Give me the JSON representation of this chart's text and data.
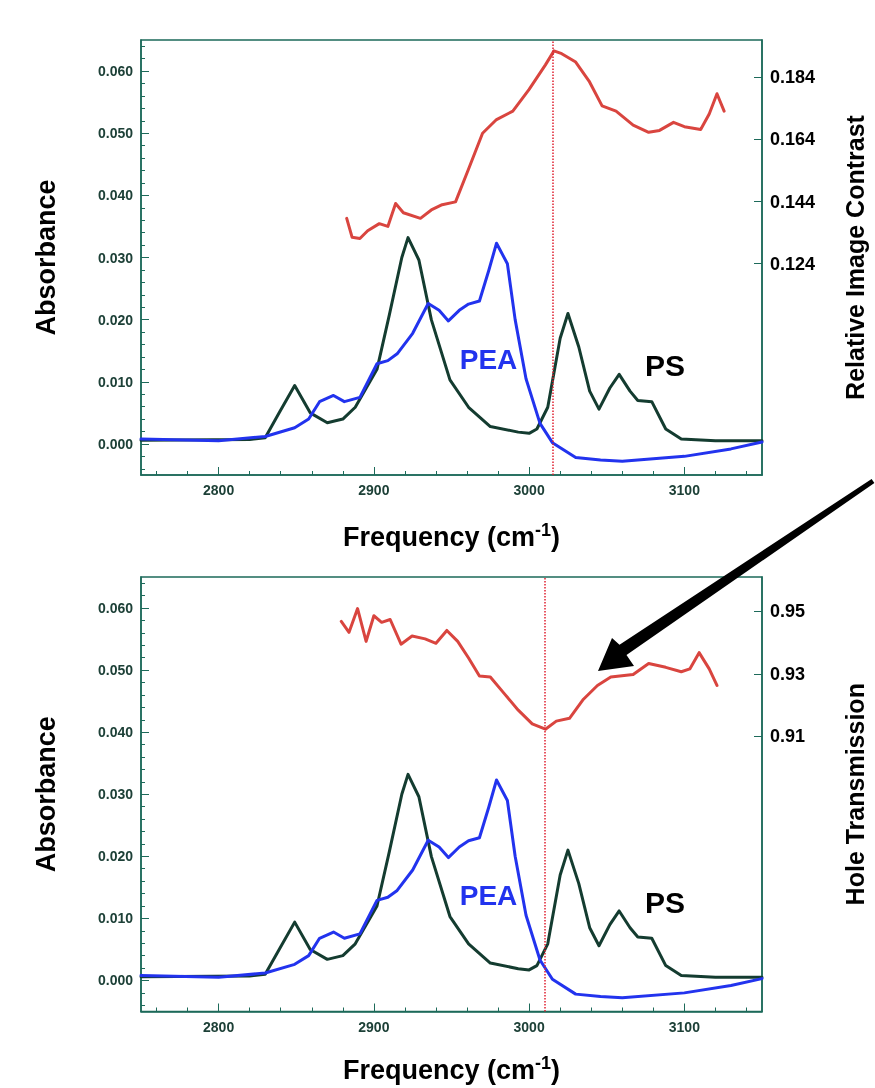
{
  "chart_data": [
    {
      "type": "line",
      "xlabel": "Frequency (cm$^{-1}$)",
      "ylabel": "Absorbance",
      "y2label": "Relative Image Contrast",
      "xlim": [
        2750,
        3150
      ],
      "xticks": [
        2800,
        2900,
        3000,
        3100
      ],
      "ylim": [
        -0.005,
        0.065
      ],
      "yticks": [
        {
          "value": 0,
          "label": "0.000"
        },
        {
          "value": 0.01,
          "label": "0.010"
        },
        {
          "value": 0.02,
          "label": "0.020"
        },
        {
          "value": 0.03,
          "label": "0.030"
        },
        {
          "value": 0.04,
          "label": "0.040"
        },
        {
          "value": 0.05,
          "label": "0.050"
        },
        {
          "value": 0.06,
          "label": "0.060"
        }
      ],
      "y2lim": [
        0.056,
        0.196
      ],
      "y2ticks": [
        0.124,
        0.144,
        0.164,
        0.184
      ],
      "legend": false,
      "grid": false,
      "marker": "none",
      "line_style": "solid",
      "ref_lines": [
        {
          "axis": "x",
          "value": 3015,
          "color": "#e02030",
          "line_style": "dotted"
        }
      ],
      "series": [
        {
          "name": "PS",
          "color": "#143c30",
          "x": [
            2750,
            2820,
            2830,
            2839,
            2849,
            2859,
            2870,
            2880,
            2888,
            2902,
            2910,
            2918,
            2922,
            2929,
            2937,
            2949,
            2961,
            2975,
            2993,
            3000,
            3005,
            3012,
            3020,
            3025,
            3032,
            3039,
            3045,
            3052,
            3058,
            3065,
            3070,
            3079,
            3088,
            3098,
            3120,
            3150
          ],
          "values": [
            0.0006,
            0.0007,
            0.001,
            0.005,
            0.0094,
            0.005,
            0.0034,
            0.004,
            0.0059,
            0.012,
            0.0208,
            0.03,
            0.0332,
            0.0296,
            0.02,
            0.0103,
            0.0059,
            0.0028,
            0.0019,
            0.0017,
            0.0024,
            0.0059,
            0.017,
            0.021,
            0.0156,
            0.0085,
            0.0056,
            0.009,
            0.0112,
            0.0085,
            0.007,
            0.0068,
            0.0024,
            0.0008,
            0.0005,
            0.0005
          ]
        },
        {
          "name": "PEA",
          "color": "#2233ee",
          "x": [
            2750,
            2800,
            2830,
            2849,
            2858,
            2865,
            2874,
            2881,
            2891,
            2902,
            2909,
            2915,
            2925,
            2935,
            2942,
            2948,
            2955,
            2961,
            2968,
            2974,
            2979,
            2986,
            2991,
            2998,
            3007,
            3015,
            3030,
            3046,
            3060,
            3100,
            3130,
            3150
          ],
          "values": [
            0.0008,
            0.0005,
            0.0012,
            0.0026,
            0.004,
            0.0068,
            0.0078,
            0.0068,
            0.0075,
            0.0129,
            0.0134,
            0.0145,
            0.0178,
            0.0226,
            0.0215,
            0.0198,
            0.0215,
            0.0225,
            0.023,
            0.0279,
            0.0323,
            0.029,
            0.02,
            0.0105,
            0.0033,
            0.0002,
            -0.0022,
            -0.0026,
            -0.0028,
            -0.002,
            -0.0008,
            0.0003
          ]
        },
        {
          "axis": "y2",
          "color": "#d9453f",
          "x": [
            2882.5,
            2886,
            2891,
            2896,
            2903.5,
            2909,
            2914,
            2919,
            2930,
            2937,
            2944,
            2952.6,
            2961,
            2970,
            2979,
            2989.5,
            3000,
            3010.5,
            3016,
            3021,
            3030,
            3038.6,
            3047,
            3056,
            3067,
            3077,
            3084,
            3093,
            3100,
            3110.5,
            3116,
            3121,
            3125.6
          ],
          "values": [
            0.1386,
            0.1325,
            0.1321,
            0.1346,
            0.1369,
            0.136,
            0.1434,
            0.1404,
            0.1386,
            0.1413,
            0.143,
            0.1439,
            0.1545,
            0.166,
            0.1704,
            0.1731,
            0.1801,
            0.188,
            0.1925,
            0.1916,
            0.1889,
            0.1828,
            0.1748,
            0.1731,
            0.1686,
            0.1663,
            0.1669,
            0.1695,
            0.1681,
            0.1672,
            0.1722,
            0.1787,
            0.1731
          ]
        }
      ]
    },
    {
      "type": "line",
      "xlabel": "Frequency (cm$^{-1}$)",
      "ylabel": "Absorbance",
      "y2label": "Hole Transmission",
      "xlim": [
        2750,
        3150
      ],
      "xticks": [
        2800,
        2900,
        3000,
        3100
      ],
      "ylim": [
        -0.005,
        0.065
      ],
      "yticks": [
        {
          "value": 0,
          "label": "0.000"
        },
        {
          "value": 0.01,
          "label": "0.010"
        },
        {
          "value": 0.02,
          "label": "0.020"
        },
        {
          "value": 0.03,
          "label": "0.030"
        },
        {
          "value": 0.04,
          "label": "0.040"
        },
        {
          "value": 0.05,
          "label": "0.050"
        },
        {
          "value": 0.06,
          "label": "0.060"
        }
      ],
      "y2lim": [
        0.822,
        0.961
      ],
      "y2ticks": [
        0.91,
        0.93,
        0.95
      ],
      "legend": false,
      "grid": false,
      "marker": "none",
      "line_style": "solid",
      "ref_lines": [
        {
          "axis": "x",
          "value": 3010,
          "color": "#e02030",
          "line_style": "dotted"
        }
      ],
      "series": [
        {
          "name": "PS",
          "color": "#143c30",
          "x": [
            2750,
            2820,
            2830,
            2839,
            2849,
            2859,
            2870,
            2880,
            2888,
            2902,
            2910,
            2918,
            2922,
            2929,
            2937,
            2949,
            2961,
            2975,
            2993,
            3000,
            3005,
            3012,
            3020,
            3025,
            3032,
            3039,
            3045,
            3052,
            3058,
            3065,
            3070,
            3079,
            3088,
            3098,
            3120,
            3150
          ],
          "values": [
            0.0006,
            0.0007,
            0.001,
            0.005,
            0.0094,
            0.005,
            0.0034,
            0.004,
            0.0059,
            0.012,
            0.0208,
            0.03,
            0.0332,
            0.0296,
            0.02,
            0.0103,
            0.0059,
            0.0028,
            0.0019,
            0.0017,
            0.0024,
            0.0059,
            0.017,
            0.021,
            0.0156,
            0.0085,
            0.0056,
            0.009,
            0.0112,
            0.0085,
            0.007,
            0.0068,
            0.0024,
            0.0008,
            0.0005,
            0.0005
          ]
        },
        {
          "name": "PEA",
          "color": "#2233ee",
          "x": [
            2750,
            2800,
            2830,
            2849,
            2858,
            2865,
            2874,
            2881,
            2891,
            2902,
            2909,
            2915,
            2925,
            2935,
            2942,
            2948,
            2955,
            2961,
            2968,
            2974,
            2979,
            2986,
            2991,
            2998,
            3007,
            3015,
            3030,
            3046,
            3060,
            3100,
            3130,
            3150
          ],
          "values": [
            0.0008,
            0.0005,
            0.0012,
            0.0026,
            0.004,
            0.0068,
            0.0078,
            0.0068,
            0.0075,
            0.0129,
            0.0134,
            0.0145,
            0.0178,
            0.0226,
            0.0215,
            0.0198,
            0.0215,
            0.0225,
            0.023,
            0.0279,
            0.0323,
            0.029,
            0.02,
            0.0105,
            0.0033,
            0.0002,
            -0.0022,
            -0.0026,
            -0.0028,
            -0.002,
            -0.0008,
            0.0003
          ]
        },
        {
          "axis": "y2",
          "color": "#d9453f",
          "x": [
            2879,
            2884,
            2889.5,
            2895,
            2900,
            2905,
            2910.5,
            2917.5,
            2924.6,
            2933,
            2940,
            2947,
            2954,
            2961,
            2968,
            2975,
            2984,
            2993,
            3002,
            3010.5,
            3017.5,
            3026,
            3035,
            3044,
            3052.6,
            3067,
            3077,
            3088,
            3098,
            3103.5,
            3109.5,
            3116,
            3121
          ],
          "values": [
            0.9468,
            0.9433,
            0.9509,
            0.9404,
            0.9486,
            0.9465,
            0.9474,
            0.9395,
            0.9421,
            0.9412,
            0.9398,
            0.9439,
            0.9404,
            0.9351,
            0.9293,
            0.929,
            0.9237,
            0.9184,
            0.914,
            0.9123,
            0.9149,
            0.9158,
            0.9219,
            0.9263,
            0.929,
            0.9298,
            0.9333,
            0.9321,
            0.9307,
            0.9316,
            0.9368,
            0.9316,
            0.9263
          ]
        }
      ]
    }
  ]
}
